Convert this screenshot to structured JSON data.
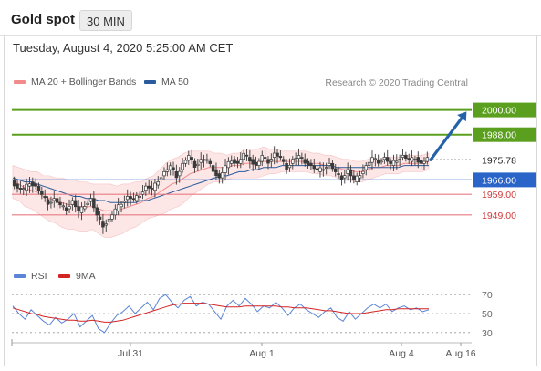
{
  "header": {
    "title": "Gold spot",
    "timeframe": "30 MIN",
    "datetime": "Tuesday, August 4, 2020 5:25:00 AM CET"
  },
  "legend": {
    "items": [
      {
        "label": "MA 20 + Bollinger Bands",
        "color": "#f08c8c"
      },
      {
        "label": "MA 50",
        "color": "#2a5b9c"
      }
    ],
    "credit": "Research © 2020 Trading Central"
  },
  "rsi_legend": {
    "items": [
      {
        "label": "RSI",
        "color": "#5b85d6"
      },
      {
        "label": "9MA",
        "color": "#d42424"
      }
    ]
  },
  "chart_data": [
    {
      "type": "candlestick",
      "ylim": [
        1925,
        2010
      ],
      "current_price": "1975.78",
      "levels": [
        {
          "value": 2000.0,
          "label": "2000.00",
          "role": "target",
          "color": "#5aa01e"
        },
        {
          "value": 1988.0,
          "label": "1988.00",
          "role": "resistance",
          "color": "#5aa01e"
        },
        {
          "value": 1966.0,
          "label": "1966.00",
          "role": "pivot",
          "color": "#2a64c8"
        },
        {
          "value": 1959.0,
          "label": "1959.00",
          "role": "support",
          "color": "#e87c84"
        },
        {
          "value": 1949.0,
          "label": "1949.00",
          "role": "support",
          "color": "#e87c84"
        }
      ],
      "x_ticks": [
        "Jul 31",
        "Aug 1",
        "Aug 4",
        "Aug 16"
      ],
      "forecast_arrow": {
        "from": 1975.78,
        "to": 2000.0,
        "color": "#2563a8"
      },
      "price_path": [
        1966,
        1962,
        1961,
        1965,
        1963,
        1958,
        1955,
        1957,
        1953,
        1952,
        1956,
        1950,
        1954,
        1957,
        1948,
        1944,
        1947,
        1951,
        1955,
        1958,
        1956,
        1959,
        1963,
        1961,
        1966,
        1970,
        1972,
        1968,
        1974,
        1977,
        1973,
        1976,
        1975,
        1971,
        1967,
        1972,
        1976,
        1974,
        1978,
        1976,
        1973,
        1977,
        1975,
        1979,
        1976,
        1972,
        1976,
        1977,
        1975,
        1973,
        1970,
        1972,
        1974,
        1969,
        1967,
        1971,
        1965,
        1969,
        1973,
        1976,
        1975,
        1977,
        1973,
        1976,
        1978,
        1975,
        1977,
        1974,
        1976
      ],
      "ma20_path": [
        1965,
        1964,
        1962,
        1961,
        1960,
        1958,
        1957,
        1956,
        1955,
        1954,
        1954,
        1953,
        1953,
        1953,
        1952,
        1951,
        1951,
        1951,
        1952,
        1953,
        1954,
        1955,
        1957,
        1958,
        1960,
        1962,
        1964,
        1965,
        1967,
        1969,
        1970,
        1971,
        1972,
        1972,
        1972,
        1972,
        1973,
        1973,
        1974,
        1974,
        1974,
        1975,
        1975,
        1975,
        1975,
        1975,
        1975,
        1975,
        1975,
        1974,
        1974,
        1973,
        1973,
        1972,
        1971,
        1971,
        1970,
        1970,
        1971,
        1972,
        1972,
        1973,
        1973,
        1973,
        1974,
        1974,
        1974,
        1974,
        1975
      ],
      "ma50_path": [
        1967,
        1966,
        1965,
        1965,
        1964,
        1963,
        1962,
        1961,
        1960,
        1959,
        1958,
        1958,
        1957,
        1957,
        1956,
        1956,
        1955,
        1955,
        1955,
        1955,
        1955,
        1956,
        1956,
        1957,
        1958,
        1959,
        1960,
        1961,
        1962,
        1963,
        1964,
        1965,
        1966,
        1967,
        1968,
        1968,
        1969,
        1970,
        1970,
        1971,
        1971,
        1972,
        1972,
        1972,
        1973,
        1973,
        1973,
        1973,
        1973,
        1973,
        1973,
        1973,
        1973,
        1972,
        1972,
        1972,
        1972,
        1972,
        1972,
        1972,
        1972,
        1972,
        1972,
        1972,
        1973,
        1973,
        1973,
        1973,
        1973
      ],
      "band_width_path": [
        8,
        8,
        9,
        9,
        10,
        10,
        11,
        11,
        12,
        12,
        12,
        12,
        12,
        11,
        12,
        13,
        13,
        12,
        12,
        11,
        11,
        10,
        10,
        10,
        11,
        12,
        12,
        12,
        12,
        11,
        10,
        9,
        8,
        7,
        7,
        6,
        6,
        6,
        7,
        7,
        7,
        7,
        6,
        6,
        5,
        5,
        5,
        5,
        5,
        5,
        5,
        5,
        5,
        5,
        5,
        5,
        5,
        5,
        5,
        5,
        4,
        4,
        4,
        4,
        4,
        4,
        4,
        4,
        4
      ]
    },
    {
      "type": "line",
      "title": "RSI",
      "ylim": [
        25,
        75
      ],
      "y_ticks": [
        70,
        50,
        30
      ],
      "series": [
        {
          "name": "RSI",
          "color": "#5b85d6",
          "values": [
            58,
            50,
            44,
            54,
            48,
            42,
            38,
            46,
            40,
            44,
            50,
            36,
            42,
            48,
            34,
            30,
            40,
            48,
            52,
            58,
            50,
            56,
            62,
            54,
            66,
            70,
            62,
            56,
            64,
            68,
            58,
            62,
            60,
            52,
            44,
            58,
            64,
            58,
            66,
            60,
            52,
            58,
            56,
            62,
            56,
            48,
            56,
            60,
            54,
            50,
            46,
            52,
            56,
            46,
            42,
            52,
            44,
            50,
            56,
            60,
            56,
            60,
            52,
            56,
            58,
            54,
            56,
            52,
            54
          ]
        },
        {
          "name": "9MA",
          "color": "#d42424",
          "values": [
            56,
            54,
            52,
            50,
            49,
            47,
            46,
            45,
            44,
            43,
            43,
            42,
            42,
            43,
            42,
            41,
            41,
            42,
            43,
            45,
            47,
            49,
            51,
            53,
            55,
            57,
            59,
            60,
            61,
            61,
            61,
            61,
            60,
            59,
            58,
            57,
            57,
            57,
            58,
            58,
            58,
            58,
            58,
            58,
            57,
            57,
            56,
            56,
            56,
            55,
            54,
            53,
            53,
            52,
            51,
            50,
            50,
            50,
            51,
            52,
            53,
            54,
            54,
            55,
            55,
            55,
            55,
            55,
            55
          ]
        }
      ]
    }
  ]
}
